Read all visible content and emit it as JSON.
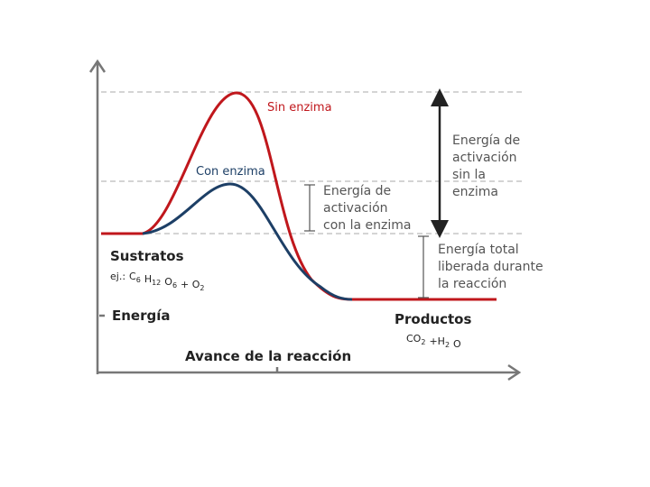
{
  "curves": {
    "without_enzyme": "Sin enzima",
    "with_enzyme": "Con enzima"
  },
  "annotations": {
    "activation_without": [
      "Energía de",
      "activación",
      "sin la",
      "enzima"
    ],
    "activation_with": [
      "Energía de",
      "activación",
      "con la enzima"
    ],
    "released": [
      "Energía total",
      "liberada durante",
      "la reacción"
    ]
  },
  "substrates": {
    "title": "Sustratos",
    "prefix": "ej.:",
    "formula": [
      [
        "C",
        "6"
      ],
      [
        "H",
        "12"
      ],
      [
        "O",
        "6"
      ],
      [
        "+ O",
        "2"
      ]
    ]
  },
  "products": {
    "title": "Productos",
    "formula": [
      [
        "CO",
        "2"
      ],
      [
        "+H",
        "2"
      ],
      [
        "O"
      ]
    ]
  },
  "y_axis_label": "Energía",
  "x_axis_label": "Avance de la reacción"
}
